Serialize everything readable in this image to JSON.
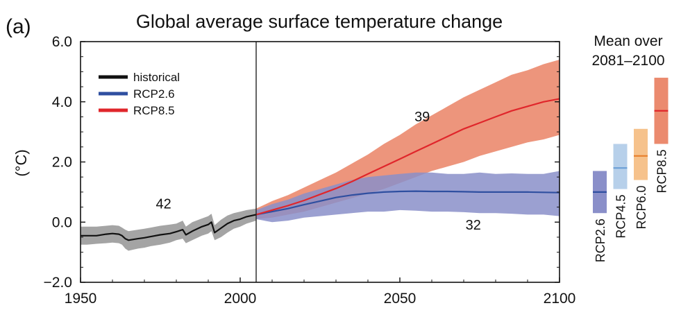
{
  "panel_label": "(a)",
  "chart_data": {
    "type": "line",
    "title": "Global average surface temperature change",
    "xlabel": "",
    "ylabel": "(°C)",
    "xlim": [
      1950,
      2100
    ],
    "ylim": [
      -2.0,
      6.0
    ],
    "xticks": [
      "1950",
      "2000",
      "2050",
      "2100"
    ],
    "yticks": [
      "−2.0",
      "0.0",
      "2.0",
      "4.0",
      "6.0"
    ],
    "vline_year": 2005,
    "legend": {
      "placement": "top-left",
      "entries": [
        {
          "label": "historical",
          "color": "#111111"
        },
        {
          "label": "RCP2.6",
          "color": "#2f4fa0"
        },
        {
          "label": "RCP8.5",
          "color": "#e0262b"
        }
      ]
    },
    "series": [
      {
        "name": "historical",
        "color": "#111111",
        "band_color": "#9a9a9a",
        "x": [
          1950,
          1952,
          1955,
          1958,
          1960,
          1962,
          1963,
          1964,
          1965,
          1968,
          1970,
          1972,
          1975,
          1978,
          1980,
          1982,
          1983,
          1985,
          1988,
          1990,
          1991,
          1992,
          1994,
          1996,
          1998,
          2000,
          2002,
          2005
        ],
        "y": [
          -0.45,
          -0.45,
          -0.45,
          -0.4,
          -0.38,
          -0.4,
          -0.45,
          -0.55,
          -0.6,
          -0.55,
          -0.52,
          -0.48,
          -0.42,
          -0.38,
          -0.32,
          -0.25,
          -0.42,
          -0.3,
          -0.15,
          -0.08,
          0.0,
          -0.35,
          -0.2,
          -0.05,
          0.05,
          0.1,
          0.18,
          0.25
        ],
        "lower": [
          -0.75,
          -0.75,
          -0.72,
          -0.7,
          -0.68,
          -0.7,
          -0.75,
          -0.88,
          -0.95,
          -0.88,
          -0.85,
          -0.8,
          -0.75,
          -0.68,
          -0.6,
          -0.55,
          -0.7,
          -0.6,
          -0.45,
          -0.38,
          -0.3,
          -0.6,
          -0.5,
          -0.35,
          -0.22,
          -0.15,
          -0.05,
          0.05
        ],
        "upper": [
          -0.15,
          -0.15,
          -0.15,
          -0.12,
          -0.1,
          -0.12,
          -0.18,
          -0.25,
          -0.3,
          -0.25,
          -0.22,
          -0.18,
          -0.12,
          -0.08,
          -0.05,
          0.05,
          -0.15,
          0.0,
          0.12,
          0.2,
          0.28,
          -0.1,
          0.08,
          0.22,
          0.3,
          0.35,
          0.4,
          0.45
        ]
      },
      {
        "name": "RCP2.6",
        "color": "#2f4fa0",
        "band_color": "#8a8fc9",
        "x": [
          2005,
          2010,
          2015,
          2020,
          2025,
          2030,
          2035,
          2040,
          2045,
          2050,
          2055,
          2060,
          2065,
          2070,
          2075,
          2080,
          2085,
          2090,
          2095,
          2100
        ],
        "y": [
          0.25,
          0.35,
          0.45,
          0.58,
          0.7,
          0.82,
          0.9,
          0.96,
          1.0,
          1.02,
          1.03,
          1.02,
          1.02,
          1.01,
          1.0,
          1.0,
          1.0,
          1.0,
          0.99,
          0.98
        ],
        "lower": [
          0.1,
          0.0,
          0.05,
          0.15,
          0.2,
          0.25,
          0.3,
          0.35,
          0.35,
          0.4,
          0.38,
          0.35,
          0.35,
          0.33,
          0.3,
          0.3,
          0.28,
          0.25,
          0.25,
          0.2
        ],
        "upper": [
          0.4,
          0.6,
          0.75,
          0.95,
          1.1,
          1.25,
          1.4,
          1.5,
          1.55,
          1.6,
          1.65,
          1.65,
          1.6,
          1.6,
          1.65,
          1.6,
          1.62,
          1.6,
          1.6,
          1.7
        ]
      },
      {
        "name": "RCP8.5",
        "color": "#e0262b",
        "band_color": "#eb8a6e",
        "x": [
          2005,
          2010,
          2015,
          2020,
          2025,
          2030,
          2035,
          2040,
          2045,
          2050,
          2055,
          2060,
          2065,
          2070,
          2075,
          2080,
          2085,
          2090,
          2095,
          2100
        ],
        "y": [
          0.25,
          0.4,
          0.55,
          0.72,
          0.92,
          1.12,
          1.35,
          1.6,
          1.85,
          2.1,
          2.35,
          2.6,
          2.85,
          3.1,
          3.3,
          3.5,
          3.7,
          3.85,
          4.0,
          4.1
        ],
        "lower": [
          0.1,
          0.15,
          0.25,
          0.35,
          0.5,
          0.65,
          0.8,
          0.95,
          1.1,
          1.3,
          1.5,
          1.7,
          1.85,
          2.0,
          2.2,
          2.35,
          2.5,
          2.65,
          2.75,
          2.9
        ],
        "upper": [
          0.45,
          0.7,
          0.9,
          1.15,
          1.4,
          1.65,
          1.95,
          2.25,
          2.6,
          2.9,
          3.25,
          3.55,
          3.85,
          4.15,
          4.4,
          4.65,
          4.9,
          5.05,
          5.25,
          5.4
        ]
      }
    ],
    "annotations": [
      {
        "text": "42",
        "x": 1976,
        "y": 0.45,
        "color": "#111111"
      },
      {
        "text": "39",
        "x": 2057,
        "y": 3.35,
        "color": "#e0262b"
      },
      {
        "text": "32",
        "x": 2073,
        "y": -0.25,
        "color": "#2f4fa0"
      }
    ],
    "side_panel": {
      "title_lines": [
        "Mean over",
        "2081–2100"
      ],
      "bars": [
        {
          "label": "RCP2.6",
          "mean": 1.0,
          "low": 0.3,
          "high": 1.7,
          "fill": "#8a8fc9",
          "line": "#2f4fa0"
        },
        {
          "label": "RCP4.5",
          "mean": 1.8,
          "low": 1.1,
          "high": 2.6,
          "fill": "#b7d0ea",
          "line": "#6a9fd6"
        },
        {
          "label": "RCP6.0",
          "mean": 2.2,
          "low": 1.4,
          "high": 3.1,
          "fill": "#f6c28c",
          "line": "#e87f2d"
        },
        {
          "label": "RCP8.5",
          "mean": 3.7,
          "low": 2.6,
          "high": 4.8,
          "fill": "#eb8a6e",
          "line": "#e0262b"
        }
      ]
    }
  }
}
